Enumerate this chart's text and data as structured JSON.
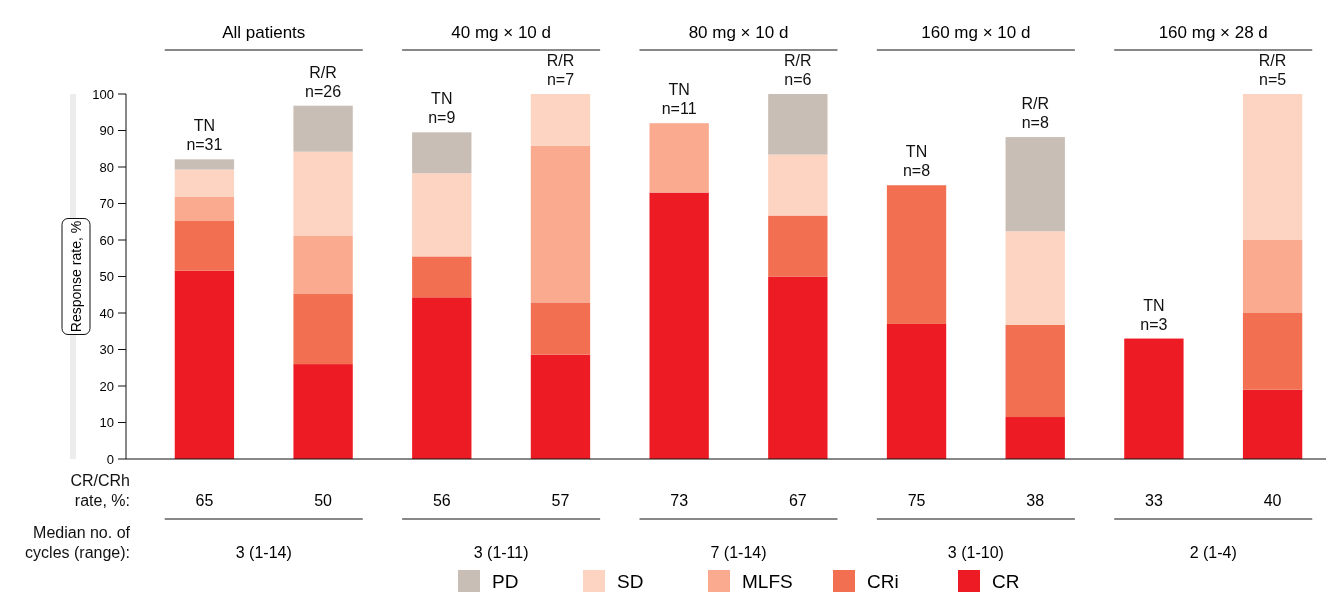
{
  "chart_data": {
    "type": "bar",
    "stacked": true,
    "ylabel": "Response rate, %",
    "categories": [
      "TN\nn=31",
      "R/R\nn=26",
      "TN\nn=9",
      "R/R\nn=7",
      "TN\nn=11",
      "R/R\nn=6",
      "TN\nn=8",
      "R/R\nn=8",
      "TN\nn=3",
      "R/R\nn=5"
    ],
    "series": [
      {
        "name": "CR",
        "color": "#ed1c24",
        "values": [
          51.6,
          26,
          44.3,
          28.6,
          73,
          50,
          37,
          11.5,
          33,
          19
        ]
      },
      {
        "name": "CRi",
        "color": "#f26f52",
        "values": [
          13.6,
          19.2,
          11.2,
          14.3,
          0,
          16.7,
          38,
          25.3,
          0,
          21
        ]
      },
      {
        "name": "MLFS",
        "color": "#f9aa8f",
        "values": [
          6.6,
          15.9,
          0,
          42.9,
          19,
          0,
          0,
          0,
          0,
          20
        ]
      },
      {
        "name": "SD",
        "color": "#fdd3c1",
        "values": [
          7.5,
          23.1,
          22.8,
          14.2,
          0,
          16.7,
          0,
          25.6,
          0,
          40
        ]
      },
      {
        "name": "PD",
        "color": "#c8beb5",
        "values": [
          2.8,
          12.6,
          11.2,
          0,
          0,
          16.6,
          0,
          25.8,
          0,
          0
        ]
      }
    ],
    "ylim": [
      0,
      100
    ],
    "yticks": [
      0,
      10,
      20,
      30,
      40,
      50,
      60,
      70,
      80,
      90,
      100
    ],
    "grid": false,
    "legend": "bottom",
    "annotations": [
      "All patients",
      "40 mg × 10 d",
      "80 mg × 10 d",
      "160 mg × 10 d",
      "160 mg × 28 d",
      "CR/CRh\nrate, %:",
      "65",
      "50",
      "56",
      "57",
      "73",
      "67",
      "75",
      "38",
      "33",
      "40",
      "Median no. of\ncycles (range):",
      "3 (1-14)",
      "3 (1-11)",
      "7 (1-14)",
      "3 (1-10)",
      "2 (1-4)"
    ]
  }
}
